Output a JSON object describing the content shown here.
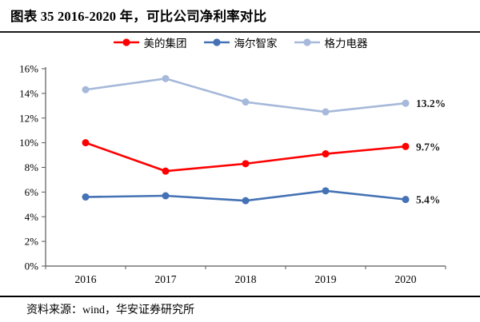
{
  "page": {
    "title": "图表 35 2016-2020 年，可比公司净利率对比",
    "source": "资料来源：wind，华安证券研究所"
  },
  "colors": {
    "rule": "#000000",
    "axis": "#595959",
    "text": "#000000"
  },
  "chart_data": {
    "type": "line",
    "title": "2016-2020 年，可比公司净利率对比",
    "categories": [
      "2016",
      "2017",
      "2018",
      "2019",
      "2020"
    ],
    "series": [
      {
        "id": "midea",
        "name": "美的集团",
        "color": "#FF0000",
        "values": [
          10.0,
          7.7,
          8.3,
          9.1,
          9.7
        ],
        "end_label": "9.7%"
      },
      {
        "id": "haier",
        "name": "海尔智家",
        "color": "#4472B4",
        "values": [
          5.6,
          5.7,
          5.3,
          6.1,
          5.4
        ],
        "end_label": "5.4%"
      },
      {
        "id": "gree",
        "name": "格力电器",
        "color": "#A6B9DA",
        "values": [
          14.3,
          15.2,
          13.3,
          12.5,
          13.2
        ],
        "end_label": "13.2%"
      }
    ],
    "xlabel": "",
    "ylabel": "",
    "ylim": [
      0,
      16
    ],
    "y_tick_step": 2,
    "y_tick_labels": [
      "0%",
      "2%",
      "4%",
      "6%",
      "8%",
      "10%",
      "12%",
      "14%",
      "16%"
    ],
    "grid": false,
    "legend_position": "top"
  }
}
